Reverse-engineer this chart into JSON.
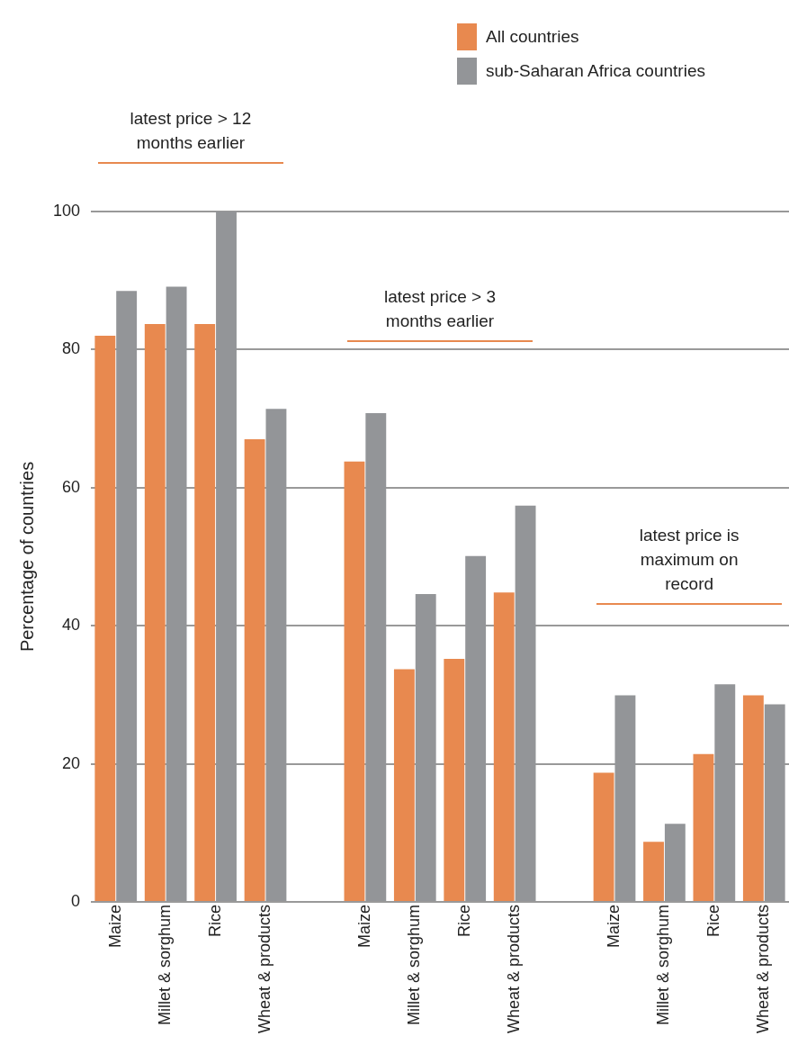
{
  "chart_data": {
    "type": "bar",
    "ylabel": "Percentage of countries",
    "categories": [
      "Maize",
      "Millet & sorghum",
      "Rice",
      "Wheat & products",
      null,
      "Maize",
      "Millet & sorghum",
      "Rice",
      "Wheat & products",
      null,
      "Maize",
      "Millet & sorghum",
      "Rice",
      "Wheat & products"
    ],
    "series": [
      {
        "name": "All countries",
        "color": "#e8894f",
        "values": [
          82,
          83.7,
          83.7,
          67,
          null,
          63.8,
          33.7,
          35.2,
          44.8,
          null,
          18.7,
          8.7,
          21.4,
          29.9
        ]
      },
      {
        "name": "sub-Saharan Africa countries",
        "color": "#939598",
        "values": [
          88.5,
          89.1,
          100,
          71.4,
          null,
          70.8,
          44.6,
          50.1,
          57.4,
          null,
          29.9,
          11.3,
          31.5,
          28.6
        ]
      }
    ],
    "annotations": [
      "latest price > 12\nmonths earlier",
      "latest price > 3\nmonths earlier",
      "latest price is\nmaximum on\nrecord"
    ],
    "ylim": [
      0,
      100
    ],
    "yticks": [
      0,
      20,
      40,
      60,
      80,
      100
    ],
    "grid": "y",
    "legend": "top right"
  }
}
